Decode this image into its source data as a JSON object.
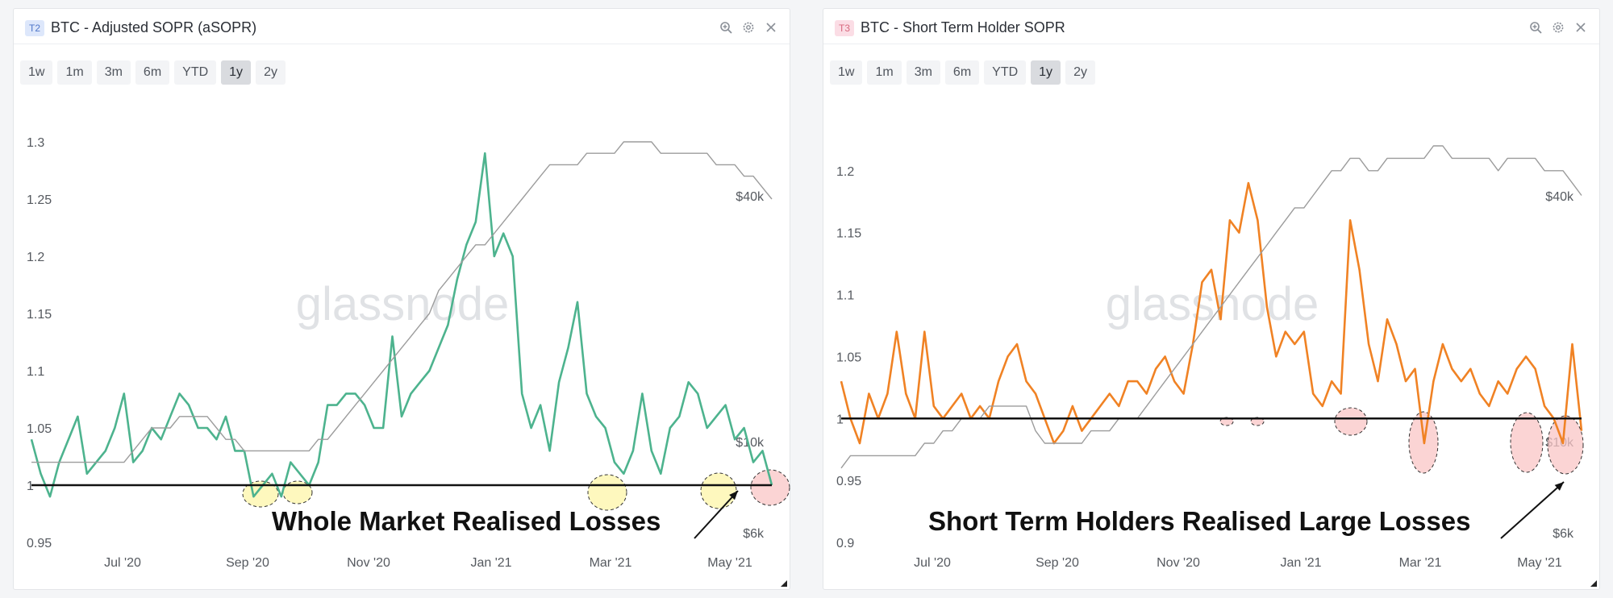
{
  "panels": [
    {
      "badge": "T2",
      "title": "BTC - Adjusted SOPR (aSOPR)",
      "ranges": [
        "1w",
        "1m",
        "3m",
        "6m",
        "YTD",
        "1y",
        "2y"
      ],
      "active_range": "1y",
      "watermark": "glassnode",
      "annotation": "Whole Market Realised Losses"
    },
    {
      "badge": "T3",
      "title": "BTC - Short Term Holder SOPR",
      "ranges": [
        "1w",
        "1m",
        "3m",
        "6m",
        "YTD",
        "1y",
        "2y"
      ],
      "active_range": "1y",
      "watermark": "glassnode",
      "annotation": "Short Term Holders Realised Large Losses"
    }
  ],
  "chart_data": [
    {
      "type": "line",
      "title": "BTC - Adjusted SOPR (aSOPR)",
      "x_ticks": [
        "Jul '20",
        "Sep '20",
        "Nov '20",
        "Jan '21",
        "Mar '21",
        "May '21"
      ],
      "y_ticks": [
        "1.3",
        "1.25",
        "1.2",
        "1.15",
        "1.1",
        "1.05",
        "1",
        "0.95"
      ],
      "ylim": [
        0.95,
        1.3
      ],
      "y2_ticks": [
        "$40k",
        "$10k",
        "$6k"
      ],
      "y2_scale": "log",
      "reference_line": 1,
      "series": [
        {
          "color": "#4db38e",
          "values": [
            1.04,
            1.01,
            0.99,
            1.02,
            1.04,
            1.06,
            1.01,
            1.02,
            1.03,
            1.05,
            1.08,
            1.02,
            1.03,
            1.05,
            1.04,
            1.06,
            1.08,
            1.07,
            1.05,
            1.05,
            1.04,
            1.06,
            1.03,
            1.03,
            0.99,
            1.0,
            1.01,
            0.99,
            1.02,
            1.01,
            1.0,
            1.02,
            1.07,
            1.07,
            1.08,
            1.08,
            1.07,
            1.05,
            1.05,
            1.13,
            1.06,
            1.08,
            1.09,
            1.1,
            1.12,
            1.14,
            1.18,
            1.21,
            1.23,
            1.29,
            1.2,
            1.22,
            1.2,
            1.08,
            1.05,
            1.07,
            1.03,
            1.09,
            1.12,
            1.16,
            1.08,
            1.06,
            1.05,
            1.02,
            1.01,
            1.03,
            1.08,
            1.03,
            1.01,
            1.05,
            1.06,
            1.09,
            1.08,
            1.05,
            1.06,
            1.07,
            1.04,
            1.05,
            1.02,
            1.03,
            1.0
          ]
        },
        {
          "color": "#9c9c9c",
          "values": [
            1.02,
            1.02,
            1.02,
            1.02,
            1.02,
            1.02,
            1.02,
            1.02,
            1.02,
            1.02,
            1.02,
            1.03,
            1.04,
            1.05,
            1.05,
            1.05,
            1.06,
            1.06,
            1.06,
            1.06,
            1.05,
            1.04,
            1.04,
            1.03,
            1.03,
            1.03,
            1.03,
            1.03,
            1.03,
            1.03,
            1.03,
            1.04,
            1.04,
            1.05,
            1.06,
            1.07,
            1.08,
            1.09,
            1.1,
            1.11,
            1.12,
            1.13,
            1.14,
            1.15,
            1.17,
            1.18,
            1.19,
            1.2,
            1.21,
            1.21,
            1.22,
            1.23,
            1.24,
            1.25,
            1.26,
            1.27,
            1.28,
            1.28,
            1.28,
            1.28,
            1.29,
            1.29,
            1.29,
            1.29,
            1.3,
            1.3,
            1.3,
            1.3,
            1.29,
            1.29,
            1.29,
            1.29,
            1.29,
            1.29,
            1.28,
            1.28,
            1.28,
            1.27,
            1.27,
            1.26,
            1.25
          ]
        }
      ]
    },
    {
      "type": "line",
      "title": "BTC - Short Term Holder SOPR",
      "x_ticks": [
        "Jul '20",
        "Sep '20",
        "Nov '20",
        "Jan '21",
        "Mar '21",
        "May '21"
      ],
      "y_ticks": [
        "1.2",
        "1.15",
        "1.1",
        "1.05",
        "1",
        "0.95",
        "0.9"
      ],
      "ylim": [
        0.9,
        1.22
      ],
      "y2_ticks": [
        "$40k",
        "$10k",
        "$6k"
      ],
      "y2_scale": "log",
      "reference_line": 1,
      "series": [
        {
          "color": "#f08224",
          "values": [
            1.03,
            1.0,
            0.98,
            1.02,
            1.0,
            1.02,
            1.07,
            1.02,
            1.0,
            1.07,
            1.01,
            1.0,
            1.01,
            1.02,
            1.0,
            1.01,
            1.0,
            1.03,
            1.05,
            1.06,
            1.03,
            1.02,
            1.0,
            0.98,
            0.99,
            1.01,
            0.99,
            1.0,
            1.01,
            1.02,
            1.01,
            1.03,
            1.03,
            1.02,
            1.04,
            1.05,
            1.03,
            1.02,
            1.06,
            1.11,
            1.12,
            1.08,
            1.16,
            1.15,
            1.19,
            1.16,
            1.09,
            1.05,
            1.07,
            1.06,
            1.07,
            1.02,
            1.01,
            1.03,
            1.02,
            1.16,
            1.12,
            1.06,
            1.03,
            1.08,
            1.06,
            1.03,
            1.04,
            0.98,
            1.03,
            1.06,
            1.04,
            1.03,
            1.04,
            1.02,
            1.01,
            1.03,
            1.02,
            1.04,
            1.05,
            1.04,
            1.01,
            1.0,
            0.98,
            1.06,
            0.99
          ]
        },
        {
          "color": "#9c9c9c",
          "values": [
            0.96,
            0.97,
            0.97,
            0.97,
            0.97,
            0.97,
            0.97,
            0.97,
            0.97,
            0.98,
            0.98,
            0.99,
            0.99,
            1.0,
            1.0,
            1.0,
            1.01,
            1.01,
            1.01,
            1.01,
            1.01,
            0.99,
            0.98,
            0.98,
            0.98,
            0.98,
            0.98,
            0.99,
            0.99,
            0.99,
            1.0,
            1.0,
            1.0,
            1.01,
            1.02,
            1.03,
            1.04,
            1.05,
            1.06,
            1.07,
            1.08,
            1.09,
            1.1,
            1.11,
            1.12,
            1.13,
            1.14,
            1.15,
            1.16,
            1.17,
            1.17,
            1.18,
            1.19,
            1.2,
            1.2,
            1.21,
            1.21,
            1.2,
            1.2,
            1.21,
            1.21,
            1.21,
            1.21,
            1.21,
            1.22,
            1.22,
            1.21,
            1.21,
            1.21,
            1.21,
            1.21,
            1.2,
            1.21,
            1.21,
            1.21,
            1.21,
            1.2,
            1.2,
            1.2,
            1.19,
            1.18
          ]
        }
      ]
    }
  ]
}
